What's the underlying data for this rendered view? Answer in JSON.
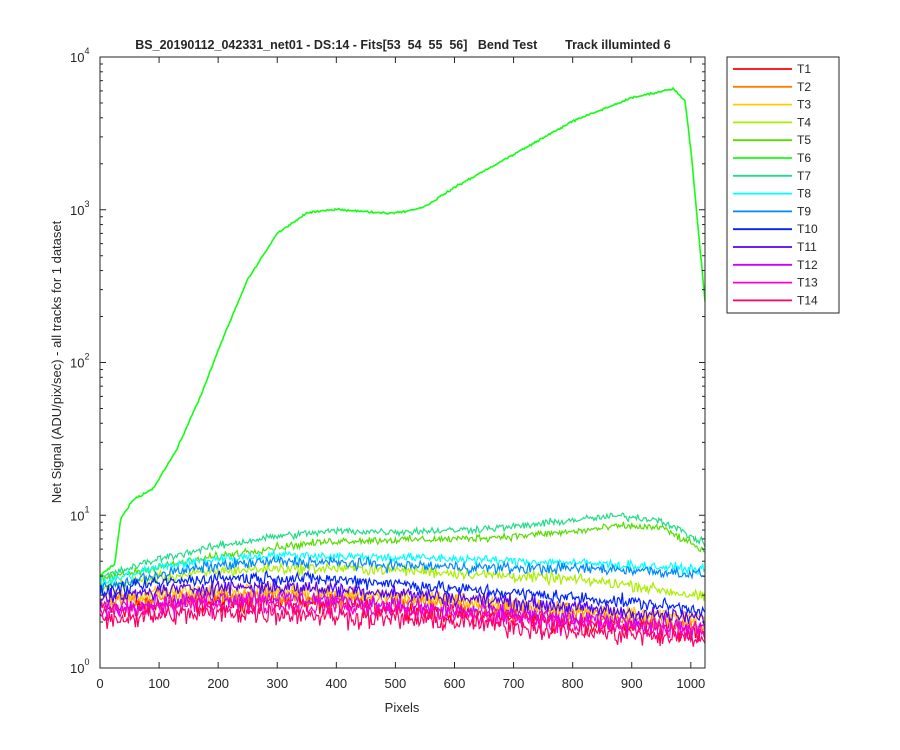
{
  "chart_data": {
    "type": "line",
    "title": "BS_20190112_042331_net01 - DS:14 - Fits[53  54  55  56]   Bend Test        Track illuminted 6",
    "xlabel": "Pixels",
    "ylabel": "Net Signal (ADU/pix/sec) - all tracks for 1 dataset",
    "xlim": [
      0,
      1024
    ],
    "ylim": [
      1,
      10000
    ],
    "yscale": "log",
    "grid": false,
    "legend_position": "outside-right",
    "x_ticks": [
      "0",
      "100",
      "200",
      "300",
      "400",
      "500",
      "600",
      "700",
      "800",
      "900",
      "1000"
    ],
    "y_ticks": [
      {
        "base": "10",
        "exp": "0"
      },
      {
        "base": "10",
        "exp": "1"
      },
      {
        "base": "10",
        "exp": "2"
      },
      {
        "base": "10",
        "exp": "3"
      },
      {
        "base": "10",
        "exp": "4"
      }
    ],
    "series": [
      {
        "name": "T1",
        "color": "#ff0000",
        "noise": 0.1,
        "points": [
          [
            0,
            2.4
          ],
          [
            100,
            2.6
          ],
          [
            200,
            2.7
          ],
          [
            300,
            2.7
          ],
          [
            400,
            2.6
          ],
          [
            500,
            2.5
          ],
          [
            600,
            2.3
          ],
          [
            700,
            2.2
          ],
          [
            800,
            2.0
          ],
          [
            900,
            1.9
          ],
          [
            1024,
            1.75
          ]
        ]
      },
      {
        "name": "T2",
        "color": "#ff7f00",
        "noise": 0.1,
        "points": [
          [
            0,
            2.7
          ],
          [
            100,
            2.9
          ],
          [
            200,
            3.0
          ],
          [
            300,
            3.0
          ],
          [
            400,
            2.9
          ],
          [
            500,
            2.8
          ],
          [
            600,
            2.6
          ],
          [
            700,
            2.4
          ],
          [
            800,
            2.3
          ],
          [
            900,
            2.1
          ],
          [
            1024,
            1.9
          ]
        ]
      },
      {
        "name": "T3",
        "color": "#ffcc00",
        "noise": 0.08,
        "points": [
          [
            0,
            2.9
          ],
          [
            100,
            3.1
          ],
          [
            200,
            3.2
          ],
          [
            300,
            3.2
          ],
          [
            400,
            3.1
          ],
          [
            500,
            3.0
          ],
          [
            600,
            2.8
          ],
          [
            700,
            2.6
          ],
          [
            800,
            2.4
          ],
          [
            900,
            2.3
          ],
          [
            1024,
            2.1
          ]
        ]
      },
      {
        "name": "T4",
        "color": "#aaee00",
        "noise": 0.06,
        "points": [
          [
            0,
            3.4
          ],
          [
            100,
            3.9
          ],
          [
            200,
            4.3
          ],
          [
            300,
            4.5
          ],
          [
            400,
            4.5
          ],
          [
            500,
            4.4
          ],
          [
            600,
            4.2
          ],
          [
            700,
            4.0
          ],
          [
            800,
            3.8
          ],
          [
            900,
            3.5
          ],
          [
            1024,
            2.9
          ]
        ]
      },
      {
        "name": "T5",
        "color": "#55dd00",
        "noise": 0.04,
        "points": [
          [
            0,
            3.8
          ],
          [
            100,
            4.6
          ],
          [
            200,
            5.4
          ],
          [
            300,
            6.2
          ],
          [
            400,
            6.8
          ],
          [
            500,
            6.9
          ],
          [
            600,
            7.0
          ],
          [
            700,
            7.3
          ],
          [
            800,
            7.8
          ],
          [
            880,
            8.5
          ],
          [
            950,
            8.3
          ],
          [
            1024,
            5.8
          ]
        ]
      },
      {
        "name": "T6",
        "color": "#11ff11",
        "noise": 0.01,
        "points": [
          [
            0,
            4.0
          ],
          [
            25,
            4.8
          ],
          [
            35,
            9.5
          ],
          [
            55,
            12.5
          ],
          [
            90,
            15
          ],
          [
            130,
            27
          ],
          [
            170,
            60
          ],
          [
            210,
            150
          ],
          [
            250,
            350
          ],
          [
            300,
            700
          ],
          [
            350,
            950
          ],
          [
            400,
            1010
          ],
          [
            450,
            970
          ],
          [
            490,
            950
          ],
          [
            520,
            980
          ],
          [
            550,
            1050
          ],
          [
            600,
            1400
          ],
          [
            700,
            2300
          ],
          [
            800,
            3800
          ],
          [
            900,
            5400
          ],
          [
            970,
            6200
          ],
          [
            990,
            5200
          ],
          [
            1000,
            2500
          ],
          [
            1024,
            250
          ]
        ]
      },
      {
        "name": "T7",
        "color": "#22dd88",
        "noise": 0.04,
        "points": [
          [
            0,
            3.9
          ],
          [
            100,
            5.2
          ],
          [
            200,
            6.3
          ],
          [
            300,
            7.3
          ],
          [
            400,
            7.9
          ],
          [
            500,
            7.8
          ],
          [
            600,
            8.0
          ],
          [
            700,
            8.4
          ],
          [
            800,
            9.3
          ],
          [
            880,
            9.9
          ],
          [
            950,
            9.3
          ],
          [
            1024,
            6.5
          ]
        ]
      },
      {
        "name": "T8",
        "color": "#00ffff",
        "noise": 0.05,
        "points": [
          [
            0,
            3.6
          ],
          [
            100,
            4.6
          ],
          [
            200,
            5.2
          ],
          [
            300,
            5.5
          ],
          [
            400,
            5.4
          ],
          [
            500,
            5.3
          ],
          [
            600,
            5.2
          ],
          [
            700,
            5.0
          ],
          [
            800,
            4.9
          ],
          [
            900,
            4.7
          ],
          [
            1024,
            4.4
          ]
        ]
      },
      {
        "name": "T9",
        "color": "#0088ff",
        "noise": 0.06,
        "points": [
          [
            0,
            3.3
          ],
          [
            100,
            4.1
          ],
          [
            200,
            4.7
          ],
          [
            300,
            5.0
          ],
          [
            400,
            4.9
          ],
          [
            500,
            4.7
          ],
          [
            600,
            4.6
          ],
          [
            700,
            4.5
          ],
          [
            800,
            4.5
          ],
          [
            900,
            4.4
          ],
          [
            1024,
            4.1
          ]
        ]
      },
      {
        "name": "T10",
        "color": "#0022ff",
        "noise": 0.07,
        "points": [
          [
            0,
            3.1
          ],
          [
            100,
            3.6
          ],
          [
            200,
            3.9
          ],
          [
            300,
            3.9
          ],
          [
            400,
            3.8
          ],
          [
            500,
            3.6
          ],
          [
            600,
            3.3
          ],
          [
            700,
            3.1
          ],
          [
            800,
            2.9
          ],
          [
            900,
            2.7
          ],
          [
            1024,
            2.4
          ]
        ]
      },
      {
        "name": "T11",
        "color": "#5500ff",
        "noise": 0.08,
        "points": [
          [
            0,
            2.8
          ],
          [
            100,
            3.2
          ],
          [
            200,
            3.4
          ],
          [
            300,
            3.4
          ],
          [
            400,
            3.3
          ],
          [
            500,
            3.1
          ],
          [
            600,
            2.9
          ],
          [
            700,
            2.7
          ],
          [
            800,
            2.5
          ],
          [
            900,
            2.3
          ],
          [
            1024,
            2.1
          ]
        ]
      },
      {
        "name": "T12",
        "color": "#cc00ff",
        "noise": 0.09,
        "points": [
          [
            0,
            2.5
          ],
          [
            100,
            2.7
          ],
          [
            200,
            2.9
          ],
          [
            300,
            2.9
          ],
          [
            400,
            2.8
          ],
          [
            500,
            2.6
          ],
          [
            600,
            2.4
          ],
          [
            700,
            2.3
          ],
          [
            800,
            2.1
          ],
          [
            900,
            2.0
          ],
          [
            1024,
            1.8
          ]
        ]
      },
      {
        "name": "T13",
        "color": "#ff00cc",
        "noise": 0.1,
        "points": [
          [
            0,
            2.3
          ],
          [
            100,
            2.5
          ],
          [
            200,
            2.6
          ],
          [
            300,
            2.6
          ],
          [
            400,
            2.5
          ],
          [
            500,
            2.4
          ],
          [
            600,
            2.2
          ],
          [
            700,
            2.1
          ],
          [
            800,
            1.95
          ],
          [
            900,
            1.85
          ],
          [
            1024,
            1.7
          ]
        ]
      },
      {
        "name": "T14",
        "color": "#ff0066",
        "noise": 0.11,
        "points": [
          [
            0,
            2.1
          ],
          [
            100,
            2.2
          ],
          [
            200,
            2.3
          ],
          [
            300,
            2.3
          ],
          [
            400,
            2.2
          ],
          [
            500,
            2.1
          ],
          [
            600,
            2.0
          ],
          [
            700,
            1.9
          ],
          [
            800,
            1.75
          ],
          [
            900,
            1.65
          ],
          [
            1024,
            1.55
          ]
        ]
      }
    ]
  }
}
